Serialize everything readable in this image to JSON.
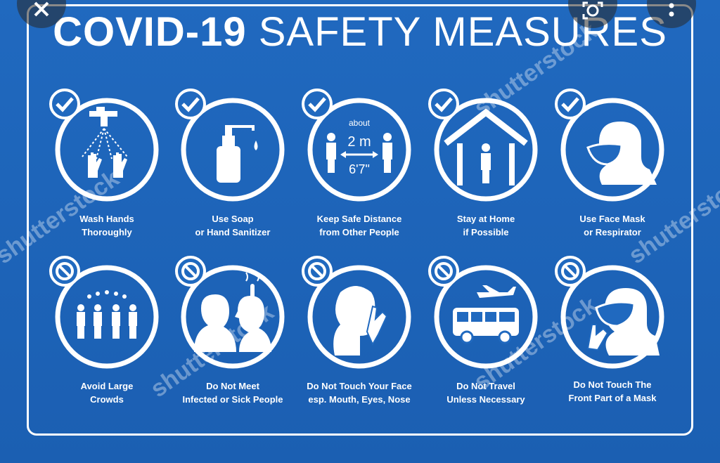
{
  "title": {
    "bold": "COVID-19",
    "light": "SAFETY MEASURES"
  },
  "measures": [
    {
      "line1": "Wash Hands",
      "line2": "Thoroughly",
      "kind": "do",
      "icon": "wash-hands-icon"
    },
    {
      "line1": "Use Soap",
      "line2": "or Hand Sanitizer",
      "kind": "do",
      "icon": "soap-bottle-icon"
    },
    {
      "line1": "Keep Safe Distance",
      "line2": "from Other People",
      "kind": "do",
      "icon": "social-distance-icon",
      "distance_top": "about",
      "distance_metric": "2 m",
      "distance_imperial": "6'7\""
    },
    {
      "line1": "Stay at Home",
      "line2": "if Possible",
      "kind": "do",
      "icon": "stay-home-icon"
    },
    {
      "line1": "Use Face Mask",
      "line2": "or Respirator",
      "kind": "do",
      "icon": "face-mask-icon"
    },
    {
      "line1": "Avoid Large",
      "line2": "Crowds",
      "kind": "dont",
      "icon": "crowd-icon"
    },
    {
      "line1": "Do Not Meet",
      "line2": "Infected or Sick People",
      "kind": "dont",
      "icon": "sick-person-icon"
    },
    {
      "line1": "Do Not Touch Your Face",
      "line2": "esp. Mouth, Eyes, Nose",
      "kind": "dont",
      "icon": "touch-face-icon"
    },
    {
      "line1": "Do Not Travel",
      "line2": "Unless Necessary",
      "kind": "dont",
      "icon": "travel-icon"
    },
    {
      "line1": "Do Not Touch The",
      "line2": "Front Part of a Mask",
      "kind": "dont",
      "icon": "touch-mask-icon"
    }
  ],
  "watermark": "shutterstock",
  "colors": {
    "background": "#1f63b8",
    "foreground": "#ffffff"
  }
}
